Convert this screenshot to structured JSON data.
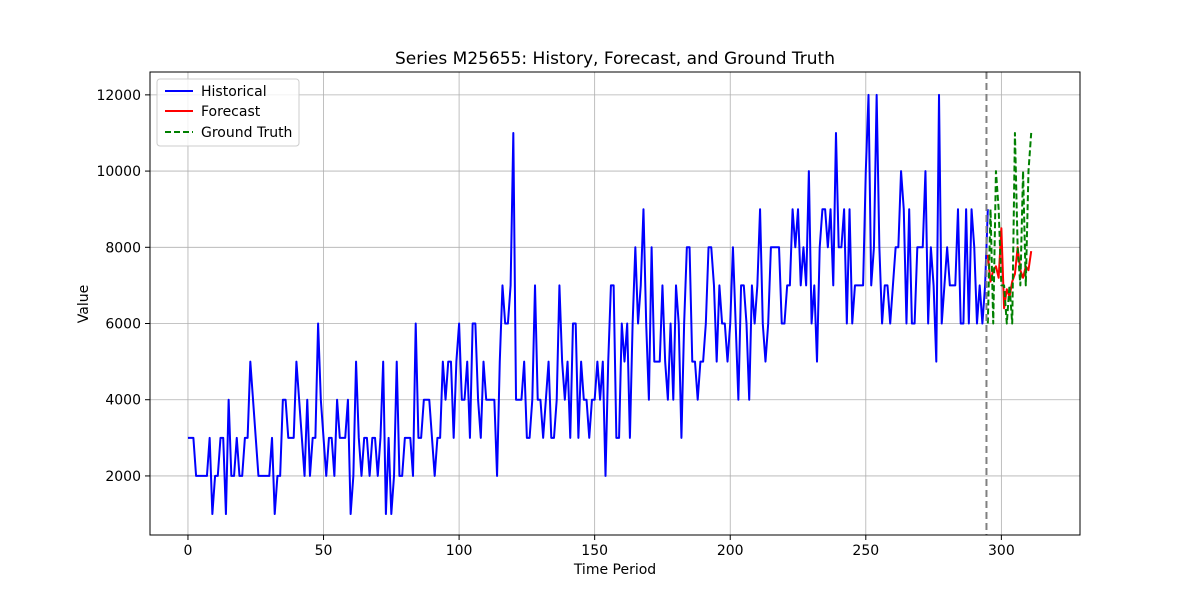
{
  "chart_data": {
    "type": "line",
    "title": "Series M25655: History, Forecast, and Ground Truth",
    "xlabel": "Time Period",
    "ylabel": "Value",
    "xlim": [
      -14,
      329
    ],
    "ylim": [
      450,
      12600
    ],
    "xticks": [
      0,
      50,
      100,
      150,
      200,
      250,
      300
    ],
    "yticks": [
      2000,
      4000,
      6000,
      8000,
      10000,
      12000
    ],
    "grid": true,
    "legend_position": "top-left",
    "forecast_start": 294.5,
    "series": [
      {
        "name": "Historical",
        "color": "#0000ff",
        "style": "solid",
        "x_start": 0,
        "values": [
          3000,
          3000,
          3000,
          2000,
          2000,
          2000,
          2000,
          2000,
          3000,
          1000,
          2000,
          2000,
          3000,
          3000,
          1000,
          4000,
          2000,
          2000,
          3000,
          2000,
          2000,
          3000,
          3000,
          5000,
          4000,
          3000,
          2000,
          2000,
          2000,
          2000,
          2000,
          3000,
          1000,
          2000,
          2000,
          4000,
          4000,
          3000,
          3000,
          3000,
          5000,
          4000,
          3000,
          2000,
          4000,
          2000,
          3000,
          3000,
          6000,
          4000,
          3000,
          2000,
          3000,
          3000,
          2000,
          4000,
          3000,
          3000,
          3000,
          4000,
          1000,
          2000,
          5000,
          3000,
          2000,
          3000,
          3000,
          2000,
          3000,
          3000,
          2000,
          3000,
          5000,
          1000,
          3000,
          1000,
          2000,
          5000,
          2000,
          2000,
          3000,
          3000,
          3000,
          2000,
          6000,
          3000,
          3000,
          4000,
          4000,
          4000,
          3000,
          2000,
          3000,
          3000,
          5000,
          4000,
          5000,
          5000,
          3000,
          5000,
          6000,
          4000,
          4000,
          5000,
          3000,
          6000,
          6000,
          4000,
          3000,
          5000,
          4000,
          4000,
          4000,
          4000,
          2000,
          5000,
          7000,
          6000,
          6000,
          7000,
          11000,
          4000,
          4000,
          4000,
          5000,
          3000,
          3000,
          4000,
          7000,
          4000,
          4000,
          3000,
          4000,
          5000,
          3000,
          3000,
          4000,
          7000,
          5000,
          4000,
          5000,
          3000,
          6000,
          6000,
          3000,
          5000,
          4000,
          4000,
          3000,
          4000,
          4000,
          5000,
          4000,
          5000,
          2000,
          5000,
          7000,
          7000,
          3000,
          3000,
          6000,
          5000,
          6000,
          3000,
          6000,
          8000,
          6000,
          7000,
          9000,
          6000,
          4000,
          8000,
          5000,
          5000,
          5000,
          7000,
          5000,
          4000,
          6000,
          4000,
          7000,
          6000,
          3000,
          6000,
          8000,
          8000,
          5000,
          5000,
          4000,
          5000,
          5000,
          6000,
          8000,
          8000,
          7000,
          5000,
          7000,
          6000,
          6000,
          5000,
          6000,
          8000,
          6000,
          4000,
          7000,
          7000,
          6000,
          4000,
          7000,
          6000,
          7000,
          9000,
          6000,
          5000,
          6000,
          8000,
          8000,
          8000,
          8000,
          6000,
          6000,
          7000,
          7000,
          9000,
          8000,
          9000,
          7000,
          8000,
          7000,
          10000,
          6000,
          7000,
          5000,
          8000,
          9000,
          9000,
          8000,
          9000,
          7000,
          11000,
          8000,
          8000,
          9000,
          6000,
          9000,
          6000,
          7000,
          7000,
          7000,
          7000,
          10000,
          12000,
          7000,
          8000,
          12000,
          8000,
          6000,
          7000,
          7000,
          6000,
          7000,
          8000,
          8000,
          10000,
          9000,
          6000,
          9000,
          6000,
          6000,
          8000,
          8000,
          8000,
          10000,
          6000,
          8000,
          7000,
          5000,
          12000,
          6000,
          7000,
          8000,
          7000,
          7000,
          7000,
          9000,
          6000,
          6000,
          9000,
          6000,
          9000,
          8000,
          6000,
          7000,
          6000,
          7000,
          9000
        ]
      },
      {
        "name": "Forecast",
        "color": "#ff0000",
        "style": "solid",
        "x_start": 295,
        "values": [
          7800,
          7100,
          7400,
          7500,
          7200,
          8500,
          6400,
          6900,
          6700,
          7100,
          7300,
          8000,
          7400,
          7200,
          7500,
          7400,
          7900
        ]
      },
      {
        "name": "Ground Truth",
        "color": "#008000",
        "style": "dashed",
        "x_start": 295,
        "values": [
          6000,
          9000,
          6000,
          10000,
          9000,
          7000,
          7000,
          6000,
          7000,
          6000,
          11000,
          8000,
          7000,
          10000,
          7000,
          10000,
          11000
        ]
      }
    ]
  }
}
